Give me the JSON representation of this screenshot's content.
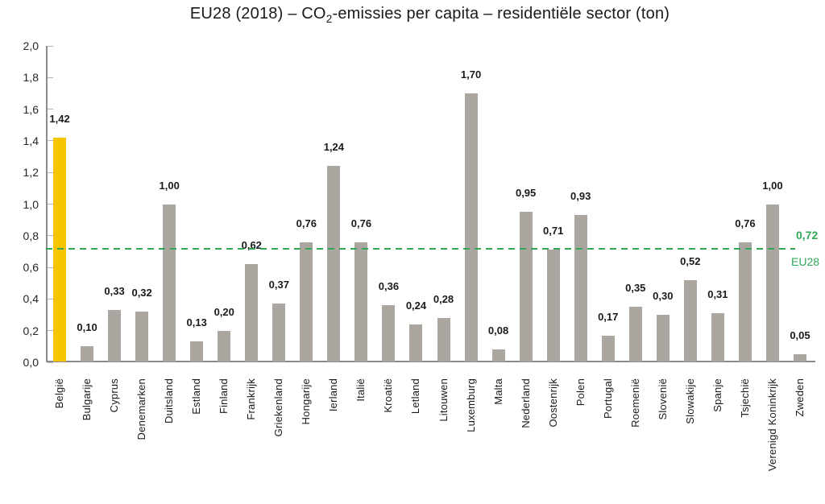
{
  "title": {
    "prefix": "EU28 (2018) – CO",
    "subscript": "2",
    "suffix": "-emissies per capita – residentiële sector (ton)"
  },
  "reference": {
    "value_label": "0,72",
    "name_label": "EU28"
  },
  "chart_data": {
    "type": "bar",
    "title": "EU28 (2018) – CO2-emissies per capita – residentiële sector (ton)",
    "xlabel": "",
    "ylabel": "",
    "ylim": [
      0,
      2
    ],
    "ytick_step": 0.2,
    "ytick_labels": [
      "0,0",
      "0,2",
      "0,4",
      "0,6",
      "0,8",
      "1,0",
      "1,2",
      "1,4",
      "1,6",
      "1,8",
      "2,0"
    ],
    "grid": false,
    "legend": null,
    "categories": [
      "België",
      "Bulgarije",
      "Cyprus",
      "Denemarken",
      "Duitsland",
      "Estland",
      "Finland",
      "Frankrijk",
      "Griekenland",
      "Hongarije",
      "Ierland",
      "Italië",
      "Kroatië",
      "Letland",
      "Litouwen",
      "Luxemburg",
      "Malta",
      "Nederland",
      "Oostenrijk",
      "Polen",
      "Portugal",
      "Roemenië",
      "Slovenië",
      "Slowakije",
      "Spanje",
      "Tsjechië",
      "Verenigd Koninkrijk",
      "Zweden"
    ],
    "values": [
      1.42,
      0.1,
      0.33,
      0.32,
      1.0,
      0.13,
      0.2,
      0.62,
      0.37,
      0.76,
      1.24,
      0.76,
      0.36,
      0.24,
      0.28,
      1.7,
      0.08,
      0.95,
      0.71,
      0.93,
      0.17,
      0.35,
      0.3,
      0.52,
      0.31,
      0.76,
      1.0,
      0.05
    ],
    "value_labels": [
      "1,42",
      "0,10",
      "0,33",
      "0,32",
      "1,00",
      "0,13",
      "0,20",
      "0,62",
      "0,37",
      "0,76",
      "1,24",
      "0,76",
      "0,36",
      "0,24",
      "0,28",
      "1,70",
      "0,08",
      "0,95",
      "0,71",
      "0,93",
      "0,17",
      "0,35",
      "0,30",
      "0,52",
      "0,31",
      "0,76",
      "1,00",
      "0,05"
    ],
    "highlight_category": "België",
    "reference_line": {
      "value": 0.72,
      "value_label": "0,72",
      "label": "EU28"
    }
  },
  "colors": {
    "highlight_bar": "#F6C500",
    "bar": "#ABA69F",
    "reference": "#2FA855",
    "axis": "#8C8C8C",
    "tick": "#B3B3B3",
    "text": "#1A1A1A"
  }
}
